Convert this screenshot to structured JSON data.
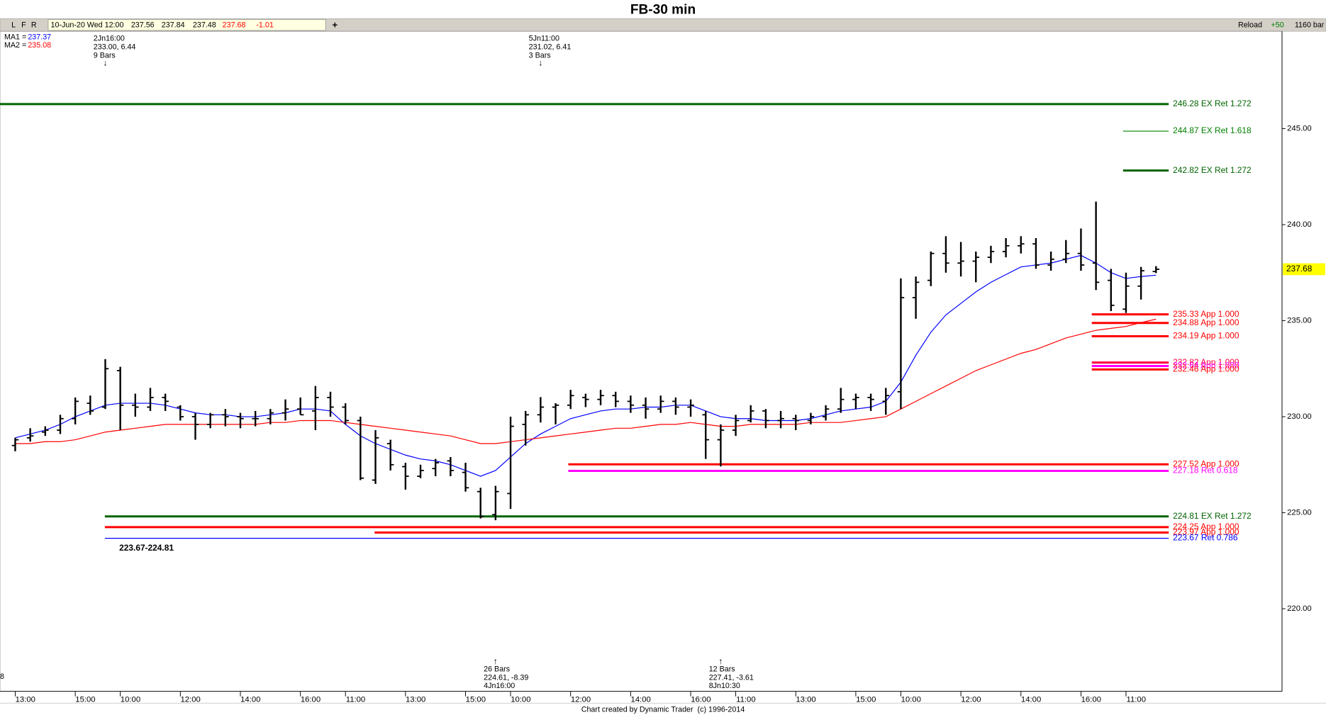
{
  "chart_data": {
    "type": "ohlc",
    "title": "FB-30 min",
    "toolbar": {
      "buttons": [
        "L",
        "F",
        "R"
      ],
      "date": "10-Jun-20 Wed 12:00",
      "change": -1.01,
      "add": "+",
      "reload": "Reload",
      "step": "+50",
      "bars": "1160 bar"
    },
    "categories": [
      "13:00",
      null,
      null,
      null,
      "15:00",
      null,
      null,
      "10:00",
      null,
      null,
      null,
      "12:00",
      null,
      null,
      null,
      "14:00",
      null,
      null,
      null,
      "16:00",
      null,
      null,
      "11:00",
      null,
      null,
      null,
      "13:00",
      null,
      null,
      null,
      "15:00",
      null,
      null,
      "10:00",
      null,
      null,
      null,
      "12:00",
      null,
      null,
      null,
      "14:00",
      null,
      null,
      null,
      "16:00",
      null,
      null,
      "11:00",
      null,
      null,
      null,
      "13:00",
      null,
      null,
      null,
      "15:00",
      null,
      null,
      "10:00",
      null,
      null,
      null,
      "12:00",
      null,
      null,
      null,
      "14:00",
      null,
      null,
      null,
      "16:00",
      null,
      null,
      "11:00",
      null,
      null
    ],
    "open": [
      228.5,
      228.9,
      229.2,
      229.3,
      229.9,
      230.7,
      230.5,
      232.4,
      230.6,
      230.5,
      231.0,
      230.5,
      230.0,
      229.6,
      230.1,
      230.0,
      229.9,
      229.9,
      230.2,
      230.4,
      230.3,
      231.0,
      230.5,
      229.8,
      226.7,
      228.6,
      227.4,
      226.9,
      227.3,
      227.7,
      227.1,
      226.1,
      224.9,
      226.0,
      229.6,
      230.1,
      230.5,
      230.6,
      231.0,
      230.9,
      231.1,
      230.8,
      230.6,
      230.4,
      230.8,
      230.5,
      230.1,
      228.8,
      229.3,
      229.8,
      230.3,
      229.8,
      229.9,
      229.8,
      230.0,
      230.4,
      230.9,
      231.0,
      230.8,
      231.3,
      236.2,
      237.1,
      238.5,
      238.0,
      238.1,
      238.3,
      238.6,
      238.9,
      239.0,
      237.9,
      238.2,
      238.5,
      238.0,
      237.1,
      235.6,
      236.8,
      237.56
    ],
    "high": [
      228.9,
      229.4,
      229.5,
      230.1,
      231.0,
      231.1,
      233.0,
      232.6,
      231.2,
      231.5,
      231.2,
      230.6,
      230.2,
      230.2,
      230.4,
      230.2,
      230.3,
      230.4,
      230.9,
      231.0,
      231.6,
      231.3,
      230.7,
      230.0,
      229.3,
      228.8,
      227.6,
      227.5,
      227.8,
      227.9,
      227.6,
      226.3,
      226.4,
      230.0,
      230.3,
      231.02,
      230.7,
      231.4,
      231.2,
      231.4,
      231.3,
      231.1,
      231.0,
      231.1,
      231.0,
      230.9,
      230.3,
      229.6,
      230.1,
      230.6,
      230.4,
      230.3,
      230.1,
      230.2,
      230.6,
      231.5,
      231.2,
      231.2,
      231.5,
      237.2,
      237.3,
      238.6,
      239.4,
      239.1,
      238.6,
      238.9,
      239.3,
      239.4,
      239.3,
      238.6,
      239.2,
      239.8,
      241.2,
      237.7,
      237.5,
      237.8,
      237.84
    ],
    "low": [
      228.2,
      228.7,
      229.0,
      229.1,
      229.6,
      230.1,
      230.4,
      229.3,
      230.0,
      230.3,
      230.3,
      229.8,
      228.8,
      229.4,
      229.5,
      229.4,
      229.5,
      229.6,
      229.8,
      230.1,
      229.3,
      230.0,
      229.6,
      226.7,
      226.5,
      227.2,
      226.2,
      226.8,
      226.9,
      226.9,
      226.1,
      224.7,
      224.61,
      225.2,
      228.5,
      229.7,
      229.6,
      230.4,
      230.5,
      230.6,
      230.5,
      230.2,
      229.9,
      230.2,
      230.1,
      230.0,
      227.8,
      227.41,
      229.0,
      229.7,
      229.4,
      229.4,
      229.3,
      229.6,
      229.8,
      230.2,
      230.4,
      230.3,
      230.1,
      230.4,
      235.1,
      236.8,
      237.5,
      237.3,
      237.0,
      238.0,
      238.3,
      238.5,
      237.7,
      237.6,
      238.0,
      237.6,
      236.6,
      235.5,
      235.4,
      236.1,
      237.48
    ],
    "close": [
      228.8,
      229.0,
      229.3,
      229.9,
      230.8,
      230.3,
      232.5,
      230.6,
      230.5,
      231.0,
      230.8,
      230.0,
      229.6,
      230.1,
      230.0,
      229.9,
      229.9,
      230.2,
      230.4,
      230.1,
      231.0,
      230.5,
      229.8,
      226.8,
      228.9,
      227.5,
      226.9,
      227.2,
      227.6,
      227.2,
      226.3,
      224.8,
      226.1,
      229.5,
      230.1,
      230.5,
      230.6,
      231.1,
      230.9,
      231.1,
      230.8,
      230.6,
      230.4,
      230.8,
      230.5,
      230.6,
      228.8,
      229.3,
      229.8,
      230.3,
      229.8,
      229.9,
      229.8,
      230.0,
      230.4,
      230.9,
      231.0,
      230.9,
      231.1,
      236.2,
      237.0,
      238.5,
      238.0,
      238.1,
      238.3,
      238.6,
      238.9,
      239.0,
      237.9,
      238.2,
      238.5,
      237.9,
      237.0,
      235.8,
      236.8,
      237.6,
      237.68
    ],
    "bar_color": "#000000",
    "series": [
      {
        "name": "MA1 =",
        "color": "#0000ff",
        "legend_value": 237.37,
        "values": [
          228.9,
          229.1,
          229.3,
          229.6,
          230.0,
          230.3,
          230.6,
          230.7,
          230.7,
          230.7,
          230.6,
          230.4,
          230.2,
          230.1,
          230.1,
          230.0,
          230.0,
          230.1,
          230.2,
          230.4,
          230.4,
          230.3,
          229.6,
          229.0,
          228.6,
          228.3,
          228.0,
          227.8,
          227.7,
          227.5,
          227.2,
          226.9,
          227.2,
          227.9,
          228.6,
          229.1,
          229.5,
          229.9,
          230.1,
          230.3,
          230.4,
          230.4,
          230.5,
          230.5,
          230.6,
          230.6,
          230.3,
          230.0,
          229.9,
          229.9,
          229.8,
          229.8,
          229.8,
          229.9,
          230.1,
          230.3,
          230.4,
          230.5,
          230.8,
          231.8,
          233.2,
          234.4,
          235.3,
          235.9,
          236.5,
          237.0,
          237.4,
          237.8,
          237.9,
          238.0,
          238.2,
          238.4,
          238.0,
          237.5,
          237.2,
          237.3,
          237.37
        ]
      },
      {
        "name": "MA2 =",
        "color": "#ff0000",
        "legend_value": 235.08,
        "values": [
          228.6,
          228.6,
          228.7,
          228.7,
          228.8,
          229.0,
          229.2,
          229.3,
          229.4,
          229.5,
          229.6,
          229.6,
          229.6,
          229.6,
          229.6,
          229.6,
          229.6,
          229.7,
          229.7,
          229.8,
          229.8,
          229.8,
          229.7,
          229.6,
          229.5,
          229.4,
          229.3,
          229.2,
          229.1,
          229.0,
          228.8,
          228.6,
          228.6,
          228.7,
          228.8,
          228.9,
          229.0,
          229.1,
          229.2,
          229.3,
          229.4,
          229.4,
          229.5,
          229.6,
          229.6,
          229.7,
          229.6,
          229.5,
          229.5,
          229.6,
          229.6,
          229.6,
          229.6,
          229.7,
          229.7,
          229.7,
          229.8,
          229.9,
          230.0,
          230.4,
          230.8,
          231.2,
          231.6,
          232.0,
          232.4,
          232.7,
          233.0,
          233.3,
          233.5,
          233.8,
          234.1,
          234.3,
          234.5,
          234.6,
          234.7,
          234.9,
          235.08
        ]
      }
    ],
    "levels": [
      {
        "value": 246.28,
        "label": "246.28 EX Ret 1.272",
        "color": "#006400"
      },
      {
        "value": 244.87,
        "label": "244.87 EX Ret 1.618",
        "color": "#008000"
      },
      {
        "value": 242.82,
        "label": "242.82 EX Ret 1.272",
        "color": "#006400"
      },
      {
        "value": 235.33,
        "label": "235.33 App 1.000",
        "color": "#ff0000"
      },
      {
        "value": 234.88,
        "label": "234.88 App 1.000",
        "color": "#ff0000"
      },
      {
        "value": 234.19,
        "label": "234.19 App 1.000",
        "color": "#ff0000"
      },
      {
        "value": 232.82,
        "label": "232.82 App 1.000",
        "color": "#ff0040"
      },
      {
        "value": 232.64,
        "label": "232.64 App 1.000",
        "color": "#ff00ff"
      },
      {
        "value": 232.46,
        "label": "232.46 App 1.000",
        "color": "#ff0000"
      },
      {
        "value": 227.52,
        "label": "227.52 App 1.000",
        "color": "#ff0000"
      },
      {
        "value": 227.18,
        "label": "227.18 Ret 0.618",
        "color": "#ff00ff"
      },
      {
        "value": 224.81,
        "label": "224.81 EX Ret 1.272",
        "color": "#006400"
      },
      {
        "value": 224.25,
        "label": "224.25 App 1.000",
        "color": "#ff0000"
      },
      {
        "value": 223.97,
        "label": "223.97 App 1.000",
        "color": "#ff0000"
      },
      {
        "value": 223.67,
        "label": "223.67 Ret 0.786",
        "color": "#0000ff"
      }
    ],
    "zone_label": "223.67-224.81",
    "edge_label": "8",
    "annotations_top": [
      {
        "lines": [
          "2Jn16:00",
          "233.00, 6.44",
          "9 Bars"
        ],
        "arrow": "↓"
      },
      {
        "lines": [
          "5Jn11:00",
          "231.02, 6.41",
          "3 Bars"
        ],
        "arrow": "↓"
      }
    ],
    "annotations_bottom": [
      {
        "lines": [
          "26 Bars",
          "224.61, -8.39",
          "4Jn16:00"
        ],
        "arrow": "↑"
      },
      {
        "lines": [
          "12 Bars",
          "227.41, -3.61",
          "8Jn10:30"
        ],
        "arrow": "↑"
      }
    ],
    "ylim": [
      215.7,
      250.07
    ],
    "yticks": [
      {
        "value": 220,
        "label": "220.00"
      },
      {
        "value": 225,
        "label": "225.00"
      },
      {
        "value": 230,
        "label": "230.00"
      },
      {
        "value": 235,
        "label": "235.00"
      },
      {
        "value": 240,
        "label": "240.00"
      },
      {
        "value": 245,
        "label": "245.00"
      }
    ],
    "price_tag_color": "#ffff00",
    "footer": "Chart created by Dynamic Trader  (c) 1996-2014"
  }
}
